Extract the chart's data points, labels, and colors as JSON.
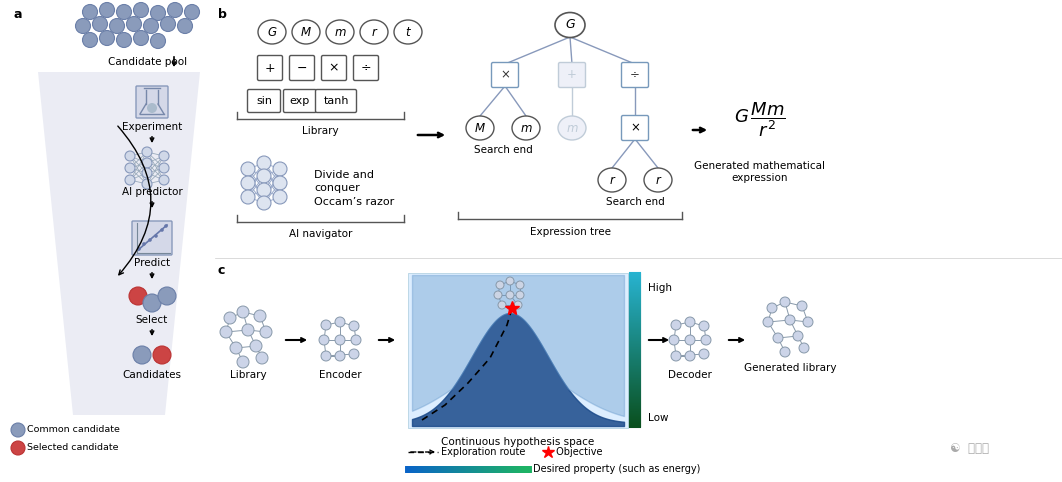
{
  "bg_color": "#ffffff",
  "panel_a": {
    "label": "a",
    "dot_color_common": "#8a9bbb",
    "dot_color_selected": "#cc4444",
    "funnel_color": "#e8eaf0"
  },
  "panel_b": {
    "label": "b",
    "variables": [
      "G",
      "M",
      "m",
      "r",
      "t"
    ],
    "operators": [
      "+",
      "−",
      "×",
      "÷"
    ],
    "functions": [
      "sin",
      "exp",
      "tanh"
    ],
    "label_library": "Library",
    "label_ai_navigator": "AI navigator",
    "label_divide_conquer": "Divide and\nconquer",
    "label_occam": "Occam’s razor",
    "label_search_end1": "Search end",
    "label_search_end2": "Search end",
    "label_expression_tree": "Expression tree",
    "formula_label": "Generated mathematical\nexpression"
  },
  "panel_c": {
    "label": "c",
    "label_library": "Library",
    "label_encoder": "Encoder",
    "label_continuous": "Continuous hypothesis space",
    "label_high": "High",
    "label_low": "Low",
    "label_decoder": "Decoder",
    "label_generated": "Generated library",
    "label_exploration": "Exploration route",
    "label_objective": "Objective",
    "label_desired": "Desired property (such as energy)"
  },
  "watermark": "量子位"
}
